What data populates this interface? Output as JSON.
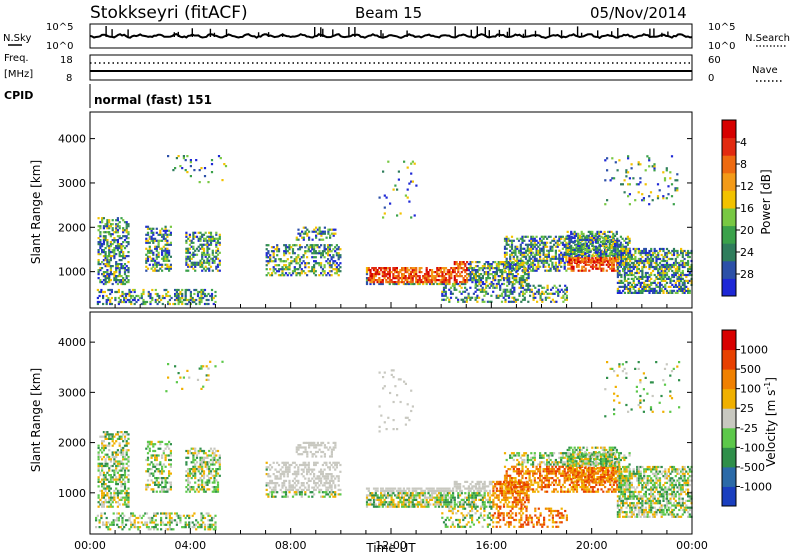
{
  "header": {
    "station": "Stokkseyri (fitACF)",
    "beam": "Beam 15",
    "date": "05/Nov/2014"
  },
  "chart_data": [
    {
      "type": "line",
      "panel": "noise",
      "left_label": "N.Sky",
      "right_label": "N.Search",
      "left_ticks": [
        "10^5",
        "10^0"
      ],
      "right_ticks": [
        "10^5",
        "10^0"
      ]
    },
    {
      "type": "line",
      "panel": "frequency",
      "left_label_1": "Freq.",
      "left_label_2": "[MHz]",
      "right_label": "Nave",
      "left_ticks": [
        "18",
        "8"
      ],
      "right_ticks": [
        "60",
        "0"
      ],
      "freq_mhz": 11,
      "nave": 15
    },
    {
      "type": "table",
      "panel": "cpid",
      "label": "CPID",
      "value": "normal (fast) 151"
    },
    {
      "type": "heatmap",
      "panel": "power",
      "ylabel": "Slant Range [km]",
      "ylim": [
        180,
        4600
      ],
      "yticks": [
        "1000",
        "2000",
        "3000",
        "4000"
      ],
      "xlim": [
        0,
        24
      ],
      "colorbar": {
        "label": "Power [dB]",
        "ticks": [
          "4",
          "8",
          "12",
          "16",
          "20",
          "24",
          "28"
        ],
        "colors": [
          "#1e28d6",
          "#2c50a8",
          "#2f7d5c",
          "#3aa14a",
          "#78c843",
          "#f2c200",
          "#f39a18",
          "#ee6a10",
          "#e22a10",
          "#d60000"
        ]
      }
    },
    {
      "type": "heatmap",
      "panel": "velocity",
      "ylabel": "Slant Range [km]",
      "ylim": [
        180,
        4600
      ],
      "yticks": [
        "1000",
        "2000",
        "3000",
        "4000"
      ],
      "xlabel": "Time UT",
      "xticks": [
        "00:00",
        "04:00",
        "08:00",
        "12:00",
        "16:00",
        "20:00",
        "00:00"
      ],
      "xlim": [
        0,
        24
      ],
      "colorbar": {
        "label": "Velocity [m s",
        "label_sup": "-1",
        "label_end": "]",
        "ticks": [
          "1000",
          "500",
          "100",
          "25",
          "-25",
          "-100",
          "-500",
          "-1000"
        ],
        "colors": [
          "#1a3fbf",
          "#2b6aa8",
          "#2f8f4a",
          "#5cc84a",
          "#c8c8c0",
          "#f0b000",
          "#f08000",
          "#e84000",
          "#d80000"
        ]
      }
    }
  ]
}
